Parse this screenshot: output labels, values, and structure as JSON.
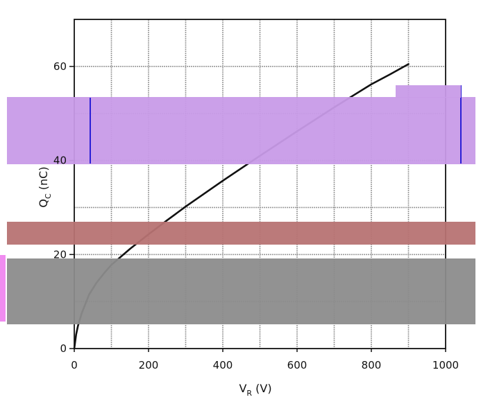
{
  "chart_data": {
    "type": "line",
    "title": "",
    "xlabel": "V",
    "xlabel_sub": "R",
    "xlabel_unit": " (V)",
    "ylabel": "Q",
    "ylabel_sub": "C",
    "ylabel_unit": " (nC)",
    "xlim": [
      0,
      1000
    ],
    "ylim": [
      0,
      70
    ],
    "xticks": [
      0,
      200,
      400,
      600,
      800,
      1000
    ],
    "yticks": [
      0,
      20,
      40,
      60
    ],
    "grid": true,
    "series": [
      {
        "x": [
          0,
          5,
          10,
          20,
          40,
          60,
          80,
          100,
          150,
          200,
          250,
          300,
          400,
          500,
          600,
          700,
          800,
          850,
          900
        ],
        "y": [
          0,
          3,
          4.8,
          7.5,
          11.5,
          14,
          16,
          17.8,
          21.2,
          24.3,
          27.3,
          30.2,
          35.7,
          41,
          46.2,
          51.3,
          56.2,
          58.3,
          60.5
        ],
        "color": "#111111"
      }
    ]
  },
  "colors": {
    "overlay_purple": "#c89be8",
    "overlay_purple_border": "#2a1fd6",
    "overlay_red": "#b77373",
    "overlay_gray": "#8c8c8c",
    "left_tab_pink": "#f08cf0"
  }
}
